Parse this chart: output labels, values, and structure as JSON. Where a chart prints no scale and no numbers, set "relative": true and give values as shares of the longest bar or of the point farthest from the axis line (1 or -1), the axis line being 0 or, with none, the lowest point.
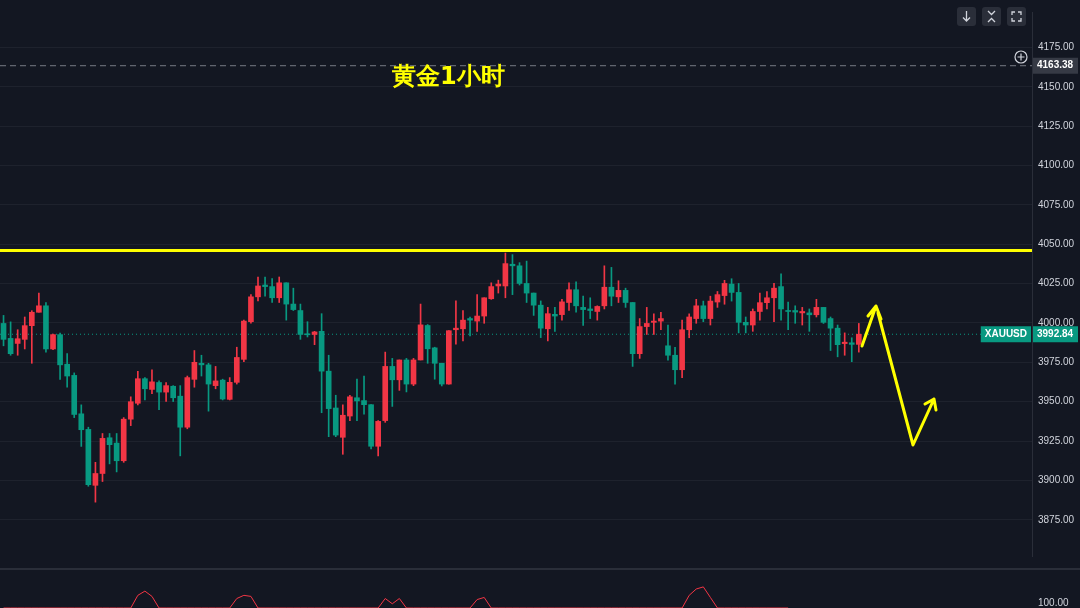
{
  "chart_data": [
    {
      "type": "candlestick",
      "title": "黄金1小时",
      "categories": [
        null,
        null,
        null,
        null,
        null,
        null,
        null,
        null,
        null,
        null,
        null,
        null,
        null,
        null,
        null,
        null,
        null,
        null,
        null,
        null,
        null,
        null,
        null,
        null,
        null,
        null,
        null,
        null,
        null,
        null,
        null,
        null,
        null,
        null,
        null,
        null,
        null,
        null,
        null,
        null,
        null,
        null,
        null,
        null,
        null,
        null,
        null,
        null,
        null,
        null,
        null,
        null,
        null,
        null,
        null,
        null,
        null,
        null,
        null,
        null,
        null,
        null,
        null,
        null,
        null,
        null,
        null,
        null,
        null,
        null,
        null,
        null,
        null,
        null,
        null,
        null,
        null,
        null,
        null,
        null,
        null,
        null,
        null,
        null,
        null,
        null,
        null,
        null,
        null,
        null,
        null,
        null,
        null,
        null,
        null,
        null,
        null,
        null,
        null,
        null,
        null,
        null,
        null,
        null,
        null,
        null,
        null,
        null,
        null,
        null,
        null,
        null,
        null,
        null,
        null,
        null,
        null,
        null,
        null,
        null,
        null,
        null,
        null,
        null,
        null,
        null,
        null,
        null,
        null,
        null,
        null,
        null,
        null,
        null,
        null,
        null,
        null,
        null,
        null,
        null,
        null,
        null,
        null,
        null,
        null,
        null
      ],
      "ohlc": [
        [
          3999.7,
          4004.8,
          3985.5,
          3989.6
        ],
        [
          3990.2,
          4000.7,
          3979.5,
          3980.5
        ],
        [
          3987,
          3995.7,
          3979.5,
          3990
        ],
        [
          3989.6,
          4003.8,
          3983.5,
          3998.3
        ],
        [
          3998.3,
          4007.8,
          3974.4,
          4006.8
        ],
        [
          4006.8,
          4019,
          4006.8,
          4010.9
        ],
        [
          4010.9,
          4012.9,
          3981.5,
          3983.5
        ],
        [
          3983.5,
          3993,
          3983,
          3992.6
        ],
        [
          3992.6,
          3993.6,
          3964.2,
          3973.4
        ],
        [
          3973.8,
          3980.5,
          3959.2,
          3966.3
        ],
        [
          3966.7,
          3968.3,
          3939.9,
          3941.9
        ],
        [
          3942.3,
          3948,
          3921.6,
          3932.2
        ],
        [
          3932.4,
          3933.8,
          3896.3,
          3897.3
        ],
        [
          3896.9,
          3911.5,
          3886.2,
          3904.4
        ],
        [
          3904.4,
          3929.8,
          3899.3,
          3926.7
        ],
        [
          3927.1,
          3929.8,
          3910.5,
          3922.7
        ],
        [
          3923.7,
          3929.8,
          3905.4,
          3912.5
        ],
        [
          3912.5,
          3939.9,
          3911.5,
          3938.9
        ],
        [
          3938.9,
          3953.1,
          3934.8,
          3950
        ],
        [
          3949,
          3969.3,
          3948,
          3964.6
        ],
        [
          3964.6,
          3965.3,
          3951.1,
          3958.2
        ],
        [
          3957.8,
          3970.3,
          3955.1,
          3962.6
        ],
        [
          3962.2,
          3963.2,
          3945,
          3956.1
        ],
        [
          3956.1,
          3962.2,
          3950.1,
          3960.2
        ],
        [
          3959.8,
          3960.2,
          3950.1,
          3952.5
        ],
        [
          3953.5,
          3960.2,
          3915.6,
          3933.8
        ],
        [
          3933.8,
          3966.3,
          3932.8,
          3965.3
        ],
        [
          3964.2,
          3982.5,
          3959.2,
          3975
        ],
        [
          3974.4,
          3979.5,
          3966.3,
          3973.4
        ],
        [
          3973.4,
          3974.4,
          3944,
          3961.2
        ],
        [
          3960.2,
          3972.4,
          3958.2,
          3963.2
        ],
        [
          3963.7,
          3964.3,
          3951.1,
          3951.7
        ],
        [
          3951.5,
          3965.3,
          3951.1,
          3962.3
        ],
        [
          3962.3,
          3984.6,
          3961.2,
          3978.1
        ],
        [
          3976.9,
          4001.8,
          3975.4,
          4001.2
        ],
        [
          4000.8,
          4018,
          3999.8,
          4016.6
        ],
        [
          4016.6,
          4029.2,
          4014,
          4023.5
        ],
        [
          4024.1,
          4029.2,
          4017,
          4023.1
        ],
        [
          4023.1,
          4028.2,
          4013,
          4016
        ],
        [
          4016,
          4029.2,
          4013,
          4025.5
        ],
        [
          4025.5,
          4025.5,
          4001.8,
          4012
        ],
        [
          4012,
          4022.1,
          4007.9,
          4008.5
        ],
        [
          4007.9,
          4012,
          3989.6,
          3992.7
        ],
        [
          3992.9,
          4000.8,
          3991.1,
          3992.5
        ],
        [
          3992.7,
          3994.7,
          3986.2,
          3994.3
        ],
        [
          3994.7,
          4005.9,
          3943,
          3969.4
        ],
        [
          3969.4,
          3979.5,
          3927.8,
          3945.6
        ],
        [
          3946,
          3954.1,
          3927.8,
          3928.8
        ],
        [
          3927.4,
          3948,
          3916.6,
          3941.4
        ],
        [
          3940.9,
          3954.1,
          3937.9,
          3953.1
        ],
        [
          3952.5,
          3964.3,
          3937.9,
          3950.5
        ],
        [
          3950.7,
          3966.3,
          3942,
          3948.1
        ],
        [
          3948.1,
          3948.1,
          3920,
          3921.7
        ],
        [
          3921.7,
          3938,
          3915.6,
          3937.5
        ],
        [
          3938,
          3981.5,
          3936.9,
          3972.4
        ],
        [
          3972.4,
          3977.5,
          3947,
          3963.9
        ],
        [
          3963.9,
          3976.5,
          3957.2,
          3976.5
        ],
        [
          3976.5,
          3977.5,
          3956.2,
          3961.2
        ],
        [
          3961.2,
          3977.5,
          3960.2,
          3976.5
        ],
        [
          3976.5,
          4012,
          3976.5,
          3998.8
        ],
        [
          3998.4,
          3999,
          3974.4,
          3983.6
        ],
        [
          3984.2,
          3984.6,
          3964.3,
          3974.4
        ],
        [
          3974.4,
          3974.4,
          3960,
          3961.2
        ],
        [
          3961.2,
          3995.1,
          3961.2,
          3995.1
        ],
        [
          3995.7,
          4014,
          3986.6,
          3996.7
        ],
        [
          3996.3,
          4007.9,
          3988.6,
          4001.8
        ],
        [
          4002.8,
          4003.8,
          3991.7,
          4001.8
        ],
        [
          4001.2,
          4018,
          3994.7,
          4004.4
        ],
        [
          4004.4,
          4016,
          3999.8,
          4016
        ],
        [
          4015.4,
          4025.5,
          4015,
          4023.1
        ],
        [
          4023.5,
          4027.2,
          4019,
          4024.7
        ],
        [
          4023.5,
          4044.4,
          4016,
          4037.7
        ],
        [
          4037.3,
          4043.4,
          4018,
          4036.3
        ],
        [
          4036.3,
          4038.3,
          4024.1,
          4025.1
        ],
        [
          4025.1,
          4039.3,
          4013,
          4019
        ],
        [
          4019,
          4019,
          4004.8,
          4011.3
        ],
        [
          4011.3,
          4014,
          3990.7,
          3996.7
        ],
        [
          3996.3,
          4009.9,
          3988.6,
          4005.9
        ],
        [
          4005.5,
          4009.9,
          3994.7,
          4004.4
        ],
        [
          4005.3,
          4015,
          4001.8,
          4013.4
        ],
        [
          4013,
          4025.5,
          4007.9,
          4021.1
        ],
        [
          4021.1,
          4026.1,
          4006.9,
          4010.9
        ],
        [
          4009.9,
          4017,
          3998.4,
          4008.5
        ],
        [
          4008.9,
          4016,
          4002.8,
          4007.9
        ],
        [
          4007.3,
          4010.9,
          4001.8,
          4010.5
        ],
        [
          4010.9,
          4036.3,
          4008.9,
          4022.7
        ],
        [
          4022.7,
          4035.3,
          4010.9,
          4017
        ],
        [
          4016.6,
          4026.8,
          4013,
          4020.7
        ],
        [
          4020.7,
          4022.1,
          4009.9,
          4013
        ],
        [
          4013,
          4013,
          3972.4,
          3980.5
        ],
        [
          3980.5,
          4002.8,
          3977.5,
          3997.7
        ],
        [
          3997.7,
          4009.9,
          3992.7,
          3999.7
        ],
        [
          4000.4,
          4005.8,
          3992.7,
          4001.2
        ],
        [
          4001.2,
          4006.8,
          3995.7,
          4002.8
        ],
        [
          3985.5,
          3998.7,
          3976.4,
          3979.5
        ],
        [
          3979.5,
          3984.5,
          3961.2,
          3970.3
        ],
        [
          3970.3,
          4001.8,
          3965.3,
          3995.7
        ],
        [
          3995.7,
          4005.8,
          3990.6,
          4003.8
        ],
        [
          4002.8,
          4015,
          3999.8,
          4010.9
        ],
        [
          4010.9,
          4013.9,
          4000.8,
          4002.8
        ],
        [
          4002.8,
          4017,
          3998.7,
          4013.9
        ],
        [
          4013.3,
          4020,
          4009.9,
          4018
        ],
        [
          4017.4,
          4027.1,
          4011.9,
          4025.1
        ],
        [
          4024.7,
          4028.1,
          4013.9,
          4019.4
        ],
        [
          4019.4,
          4025.1,
          3993.7,
          4000.4
        ],
        [
          4000.4,
          4003.8,
          3993.7,
          3998.7
        ],
        [
          3998.7,
          4008.9,
          3994.7,
          4007.3
        ],
        [
          4007.3,
          4019,
          4001.8,
          4012.9
        ],
        [
          4012.9,
          4020,
          4008.9,
          4016
        ],
        [
          4016,
          4025.1,
          4000.8,
          4022.1
        ],
        [
          4023.1,
          4031.2,
          4001.8,
          4008.9
        ],
        [
          4007.9,
          4013.3,
          3995.7,
          4007.3
        ],
        [
          4007.9,
          4010.9,
          3999.8,
          4006.9
        ],
        [
          4006.4,
          4009.9,
          3998.7,
          4007.3
        ],
        [
          4006.4,
          4008.9,
          3994.7,
          4005.2
        ],
        [
          4005.2,
          4015,
          4003.8,
          4009.9
        ],
        [
          4009.9,
          4009.9,
          3999.7,
          4000.4
        ],
        [
          4002.8,
          4003.8,
          3982.5,
          3996.7
        ],
        [
          3996.7,
          3998.7,
          3978.5,
          3986.2
        ],
        [
          3986.9,
          3993.7,
          3979.5,
          3987.8
        ],
        [
          3987.4,
          3990.6,
          3975.4,
          3986.4
        ],
        [
          3986.4,
          3999.7,
          3981.5,
          3992.84
        ],
        null,
        null,
        null,
        null,
        null,
        null,
        null,
        null,
        null,
        null,
        null,
        null,
        null,
        null,
        null,
        null,
        null,
        null,
        null,
        null,
        null,
        null,
        null,
        null
      ],
      "colors": [
        "#089981",
        "#089981",
        "#f23645",
        "#f23645",
        "#f23645",
        "#f23645",
        "#089981",
        "#f23645",
        "#089981",
        "#089981",
        "#089981",
        "#089981",
        "#089981",
        "#f23645",
        "#f23645",
        "#089981",
        "#089981",
        "#f23645",
        "#f23645",
        "#f23645",
        "#089981",
        "#f23645",
        "#089981",
        "#f23645",
        "#089981",
        "#089981",
        "#f23645",
        "#f23645",
        "#089981",
        "#089981",
        "#f23645",
        "#089981",
        "#f23645",
        "#f23645",
        "#f23645",
        "#f23645",
        "#f23645",
        "#089981",
        "#089981",
        "#f23645",
        "#089981",
        "#089981",
        "#089981",
        "#089981",
        "#f23645",
        "#089981",
        "#089981",
        "#089981",
        "#f23645",
        "#f23645",
        "#089981",
        "#089981",
        "#089981",
        "#f23645",
        "#f23645",
        "#089981",
        "#f23645",
        "#089981",
        "#f23645",
        "#f23645",
        "#089981",
        "#089981",
        "#089981",
        "#f23645",
        "#f23645",
        "#f23645",
        "#089981",
        "#f23645",
        "#f23645",
        "#f23645",
        "#f23645",
        "#f23645",
        "#089981",
        "#089981",
        "#089981",
        "#089981",
        "#089981",
        "#f23645",
        "#089981",
        "#f23645",
        "#f23645",
        "#089981",
        "#089981",
        "#089981",
        "#f23645",
        "#f23645",
        "#089981",
        "#f23645",
        "#089981",
        "#089981",
        "#f23645",
        "#f23645",
        "#f23645",
        "#f23645",
        "#089981",
        "#089981",
        "#f23645",
        "#f23645",
        "#f23645",
        "#089981",
        "#f23645",
        "#f23645",
        "#f23645",
        "#089981",
        "#089981",
        "#089981",
        "#f23645",
        "#f23645",
        "#f23645",
        "#f23645",
        "#089981",
        "#089981",
        "#089981",
        "#f23645",
        "#089981",
        "#f23645",
        "#089981",
        "#089981",
        "#089981",
        "#f23645",
        "#089981",
        "#f23645",
        null,
        null,
        null,
        null,
        null,
        null,
        null,
        null,
        null,
        null,
        null,
        null,
        null,
        null,
        null,
        null,
        null,
        null,
        null,
        null,
        null,
        null,
        null,
        null
      ],
      "ylim": [
        3852,
        4197.5
      ],
      "yticks": [
        {
          "value": 3875,
          "label": "3875.00"
        },
        {
          "value": 3900,
          "label": "3900.00"
        },
        {
          "value": 3925,
          "label": "3925.00"
        },
        {
          "value": 3950,
          "label": "3950.00"
        },
        {
          "value": 3975,
          "label": "3975.00"
        },
        {
          "value": 4000,
          "label": "4000.00"
        },
        {
          "value": 4025,
          "label": "4025.00"
        },
        {
          "value": 4050,
          "label": "4050.00"
        },
        {
          "value": 4075,
          "label": "4075.00"
        },
        {
          "value": 4100,
          "label": "4100.00"
        },
        {
          "value": 4125,
          "label": "4125.00"
        },
        {
          "value": 4150,
          "label": "4150.00"
        },
        {
          "value": 4175,
          "label": "4175.00"
        }
      ],
      "tick_labels": "y",
      "grid": "y",
      "legend": false,
      "ref_lines": [
        {
          "axis": "y",
          "value": 4046,
          "color": "#ffff00",
          "line_style": "solid"
        },
        {
          "axis": "y",
          "value": 4163.38,
          "label": "4163.38",
          "color": "#787b86",
          "line_style": "dashed"
        },
        {
          "axis": "y",
          "value": 3992.84,
          "label": "3992.84",
          "color": "#089981",
          "line_style": "dotted"
        }
      ],
      "annotations": [
        {
          "text": "XAUUSD",
          "y": 3992.84
        }
      ]
    },
    {
      "type": "line",
      "relative": true,
      "categories": [
        null,
        null,
        null,
        null,
        null,
        null,
        null,
        null,
        null,
        null,
        null,
        null,
        null,
        null,
        null,
        null,
        null,
        null,
        null,
        null,
        null,
        null,
        null,
        null,
        null,
        null,
        null,
        null,
        null,
        null,
        null,
        null,
        null,
        null,
        null,
        null,
        null,
        null,
        null,
        null,
        null,
        null,
        null,
        null,
        null,
        null,
        null,
        null,
        null,
        null,
        null,
        null,
        null,
        null,
        null,
        null,
        null,
        null,
        null,
        null,
        null,
        null,
        null,
        null,
        null,
        null,
        null,
        null,
        null,
        null,
        null,
        null,
        null,
        null,
        null,
        null,
        null,
        null,
        null,
        null,
        null,
        null,
        null,
        null,
        null,
        null,
        null,
        null,
        null,
        null,
        null,
        null,
        null,
        null,
        null,
        null,
        null,
        null,
        null,
        null,
        null,
        null,
        null,
        null,
        null,
        null,
        null,
        null,
        null,
        null,
        null,
        null,
        null,
        null,
        null,
        null,
        null,
        null,
        null,
        null,
        null,
        null,
        null,
        null,
        null,
        null,
        null,
        null,
        null,
        null,
        null,
        null,
        null,
        null,
        null,
        null,
        null,
        null,
        null,
        null,
        null,
        null,
        null,
        null,
        null,
        null
      ],
      "series": [
        {
          "color": "#f23645",
          "values": [
            0,
            0,
            0,
            0,
            0,
            0,
            0,
            0,
            0,
            0,
            0,
            0,
            0,
            0,
            0,
            0,
            0,
            0,
            0,
            0.6,
            0.8,
            0.55,
            0,
            0,
            0,
            0,
            0,
            0,
            0,
            0,
            0,
            0,
            0,
            0.45,
            0.6,
            0.55,
            0,
            0,
            0,
            0,
            0,
            0,
            0,
            0,
            0,
            0,
            0,
            0,
            0,
            0,
            0,
            0,
            0,
            0,
            0.45,
            0.2,
            0.45,
            0,
            0,
            0,
            0,
            0,
            0,
            0,
            0,
            0,
            0,
            0.4,
            0.5,
            0,
            0,
            0,
            0,
            0,
            0,
            0,
            0,
            0,
            0,
            0,
            0,
            0,
            0,
            0,
            0,
            0,
            0,
            0,
            0,
            0,
            0,
            0,
            0,
            0,
            0,
            0,
            0,
            0.6,
            0.9,
            1,
            0.5,
            0,
            0,
            0,
            0,
            0,
            0,
            0,
            0,
            0,
            0,
            0,
            null,
            null,
            null,
            null,
            null,
            null,
            null,
            null,
            null,
            null,
            null,
            null,
            null,
            null,
            null,
            null,
            null,
            null,
            null,
            null,
            null,
            null,
            null,
            null,
            null,
            null,
            null,
            null,
            null,
            null,
            null,
            null,
            null,
            null
          ]
        }
      ],
      "tick_labels": false,
      "legend": false,
      "grid": false,
      "annotations": [
        "100.00"
      ]
    }
  ]
}
